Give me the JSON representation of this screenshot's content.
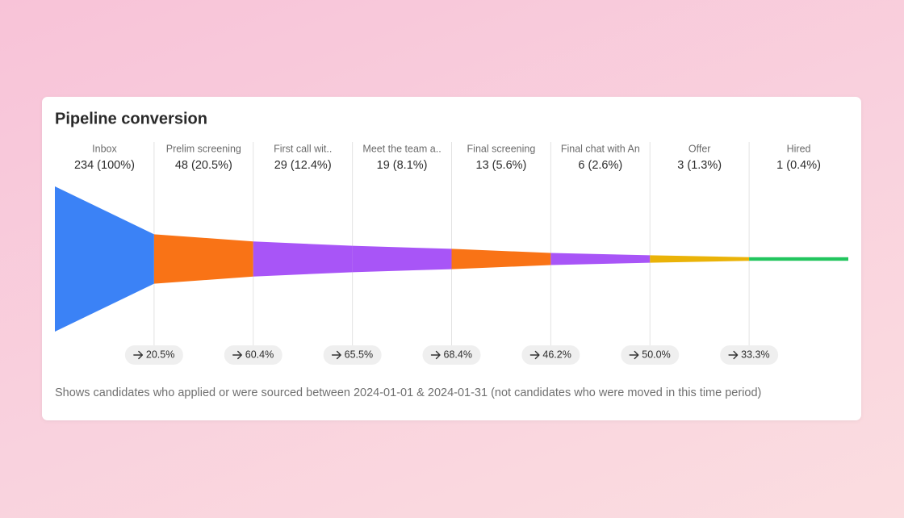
{
  "chart_data": {
    "type": "funnel",
    "title": "Pipeline conversion",
    "categories": [
      "Inbox",
      "Prelim screening",
      "First call wit..",
      "Meet the team a..",
      "Final screening",
      "Final chat with An",
      "Offer",
      "Hired"
    ],
    "values": [
      234,
      48,
      29,
      19,
      13,
      6,
      3,
      1
    ],
    "value_labels": [
      "234 (100%)",
      "48 (20.5%)",
      "29 (12.4%)",
      "19 (8.1%)",
      "13 (5.6%)",
      "6 (2.6%)",
      "3 (1.3%)",
      "1 (0.4%)"
    ],
    "colors": [
      "#3b82f6",
      "#f97316",
      "#a855f7",
      "#a855f7",
      "#f97316",
      "#a855f7",
      "#eab308",
      "#22c55e"
    ],
    "conversion": {
      "values": [
        20.5,
        60.4,
        65.5,
        68.4,
        46.2,
        50.0,
        33.3
      ],
      "value_labels": [
        "20.5%",
        "60.4%",
        "65.5%",
        "68.4%",
        "46.2%",
        "50.0%",
        "33.3%"
      ]
    },
    "footnote": "Shows candidates who applied or were sourced between 2024-01-01 & 2024-01-31 (not candidates who were moved in this time period)"
  }
}
